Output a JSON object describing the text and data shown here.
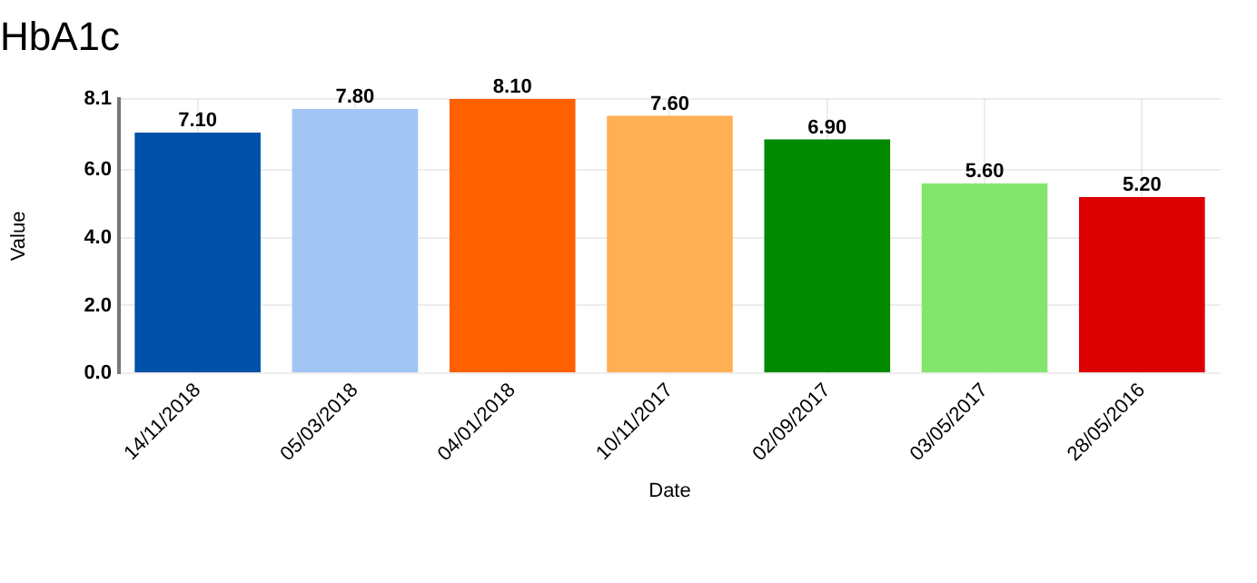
{
  "chart_data": {
    "type": "bar",
    "title": "HbA1c",
    "xlabel": "Date",
    "ylabel": "Value",
    "categories": [
      "14/11/2018",
      "05/03/2018",
      "04/01/2018",
      "10/11/2017",
      "02/09/2017",
      "03/05/2017",
      "28/05/2016"
    ],
    "values": [
      7.1,
      7.8,
      8.1,
      7.6,
      6.9,
      5.6,
      5.2
    ],
    "value_labels": [
      "7.10",
      "7.80",
      "8.10",
      "7.60",
      "6.90",
      "5.60",
      "5.20"
    ],
    "colors": [
      "#0051a8",
      "#a2c6f4",
      "#ff6000",
      "#ffb055",
      "#008a00",
      "#82e66e",
      "#dd0000"
    ],
    "ylim": [
      0,
      8.1
    ],
    "yticks": [
      {
        "value": 0,
        "label": "0.0"
      },
      {
        "value": 2,
        "label": "2.0"
      },
      {
        "value": 4,
        "label": "4.0"
      },
      {
        "value": 6,
        "label": "6.0"
      },
      8.1
    ],
    "grid": true,
    "legend": false
  }
}
